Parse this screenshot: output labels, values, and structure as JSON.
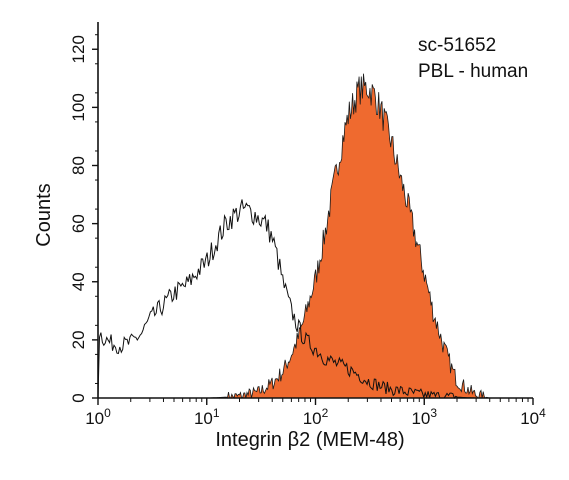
{
  "chart_data": {
    "type": "area",
    "title": "",
    "xlabel": "Integrin β2 (MEM-48)",
    "ylabel": "Counts",
    "x_scale": "log",
    "xlim": [
      1,
      10000
    ],
    "ylim": [
      0,
      128
    ],
    "x_ticks": [
      {
        "value": 1,
        "base": "10",
        "exp": "0"
      },
      {
        "value": 10,
        "base": "10",
        "exp": "1"
      },
      {
        "value": 100,
        "base": "10",
        "exp": "2"
      },
      {
        "value": 1000,
        "base": "10",
        "exp": "3"
      },
      {
        "value": 10000,
        "base": "10",
        "exp": "4"
      }
    ],
    "y_ticks": [
      0,
      20,
      40,
      60,
      80,
      100,
      120
    ],
    "annotations": [
      "sc-51652",
      "PBL - human"
    ],
    "grid": false,
    "series": [
      {
        "style": "outline",
        "color": "#111111",
        "x": [
          1,
          1.02,
          1.1,
          1.3,
          1.6,
          2,
          2.5,
          3,
          4,
          5,
          6,
          7,
          8,
          10,
          12,
          15,
          18,
          22,
          26,
          30,
          35,
          40,
          45,
          50,
          60,
          70,
          80,
          100,
          120,
          150,
          200,
          250,
          300,
          400,
          500,
          700,
          1000,
          1500,
          2000,
          2500,
          3000
        ],
        "y": [
          0,
          23,
          21,
          19,
          18,
          19,
          22,
          27,
          32,
          36,
          38,
          40,
          43,
          47,
          53,
          60,
          63,
          65,
          64,
          62,
          60,
          55,
          48,
          40,
          30,
          24,
          20,
          17,
          14,
          12,
          10,
          8,
          6,
          4,
          3,
          2,
          1,
          0.5,
          0.3,
          0.1,
          0
        ]
      },
      {
        "style": "filled",
        "color": "#ef6a2f",
        "x": [
          10,
          20,
          30,
          40,
          50,
          60,
          70,
          80,
          100,
          120,
          150,
          180,
          200,
          250,
          300,
          350,
          400,
          500,
          600,
          700,
          800,
          1000,
          1200,
          1500,
          1800,
          2000,
          2500,
          3000,
          4000
        ],
        "y": [
          0,
          0.5,
          2,
          5,
          9,
          15,
          21,
          28,
          41,
          55,
          75,
          90,
          97,
          106,
          107,
          104,
          99,
          88,
          76,
          67,
          58,
          43,
          30,
          18,
          10,
          6,
          3,
          1,
          0
        ]
      }
    ]
  }
}
